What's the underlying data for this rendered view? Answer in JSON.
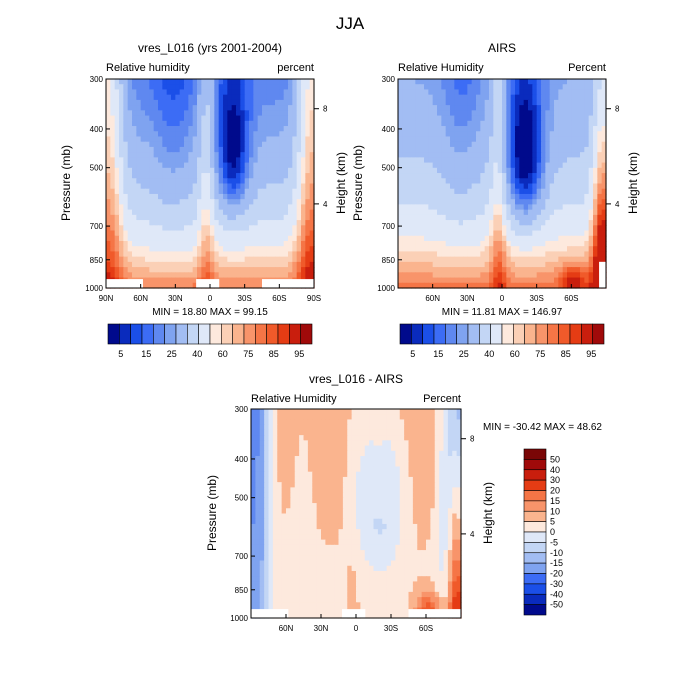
{
  "figure_title": "JJA",
  "colors": {
    "palette": [
      "#000a8c",
      "#0a2bbd",
      "#1b4fe8",
      "#3c6cf5",
      "#5f88f0",
      "#7fa3f0",
      "#a2bdf3",
      "#c3d6f5",
      "#dfe8f8",
      "#fde9dd",
      "#fbd0b6",
      "#fab48e",
      "#f8946a",
      "#f57546",
      "#f05a2a",
      "#e53c14",
      "#c91e0d",
      "#a00a0a",
      "#7a0606"
    ]
  },
  "chart_data": [
    {
      "id": "model",
      "type": "heatmap",
      "title": "vres_L016 (yrs 2001-2004)",
      "left_label": "Relative humidity",
      "right_label": "percent",
      "ylabel": "Pressure (mb)",
      "y2label": "Height (km)",
      "pressure_ticks": [
        "300",
        "400",
        "500",
        "700",
        "850",
        "1000"
      ],
      "height_ticks": [
        "8",
        "4"
      ],
      "height_tick_values_mb": [
        356,
        616
      ],
      "lat_ticks": [
        "90N",
        "60N",
        "30N",
        "0",
        "30S",
        "60S",
        "90S"
      ],
      "lat_tick_values": [
        90,
        60,
        30,
        0,
        -30,
        -60,
        -90
      ],
      "x_range": [
        90,
        -90
      ],
      "ylim_mb": [
        300,
        1000
      ],
      "stats": "MIN =  18.80  MAX =  99.15",
      "colorbar_labels": [
        "5",
        "15",
        "25",
        "40",
        "60",
        "75",
        "85",
        "95"
      ],
      "colorbar_levels": [
        0,
        5,
        10,
        15,
        20,
        25,
        30,
        40,
        50,
        60,
        65,
        70,
        75,
        80,
        85,
        90,
        95,
        100
      ],
      "blanks": [
        [
          90,
          58,
          950
        ],
        [
          12,
          -8,
          950
        ],
        [
          -45,
          -90,
          950
        ]
      ]
    },
    {
      "id": "obs",
      "type": "heatmap",
      "title": "AIRS",
      "left_label": "Relative Humidity",
      "right_label": "Percent",
      "ylabel": "Pressure (mb)",
      "y2label": "Height (km)",
      "pressure_ticks": [
        "300",
        "400",
        "500",
        "700",
        "850",
        "1000"
      ],
      "height_ticks": [
        "8",
        "4"
      ],
      "height_tick_values_mb": [
        356,
        616
      ],
      "lat_ticks": [
        "60N",
        "30N",
        "0",
        "30S",
        "60S"
      ],
      "lat_tick_values": [
        60,
        30,
        0,
        -30,
        -60
      ],
      "x_range": [
        90,
        -90
      ],
      "ylim_mb": [
        300,
        1000
      ],
      "stats": "MIN =  11.81  MAX =  146.97",
      "colorbar_labels": [
        "5",
        "15",
        "25",
        "40",
        "60",
        "75",
        "85",
        "95"
      ],
      "colorbar_levels": [
        0,
        5,
        10,
        15,
        20,
        25,
        30,
        40,
        50,
        60,
        65,
        70,
        75,
        80,
        85,
        90,
        95,
        100
      ],
      "blanks": [
        [
          -84,
          -90,
          860
        ]
      ]
    },
    {
      "id": "diff",
      "type": "heatmap",
      "title": "vres_L016 - AIRS",
      "left_label": "Relative Humidity",
      "right_label": "Percent",
      "ylabel": "Pressure (mb)",
      "y2label": "Height (km)",
      "pressure_ticks": [
        "300",
        "400",
        "500",
        "700",
        "850",
        "1000"
      ],
      "height_ticks": [
        "8",
        "4"
      ],
      "height_tick_values_mb": [
        356,
        616
      ],
      "lat_ticks": [
        "60N",
        "30N",
        "0",
        "30S",
        "60S"
      ],
      "lat_tick_values": [
        60,
        30,
        0,
        -30,
        -60
      ],
      "x_range": [
        90,
        -90
      ],
      "ylim_mb": [
        300,
        1000
      ],
      "stats": "MIN = -30.42  MAX =  48.62",
      "colorbar_labels": [
        "50",
        "40",
        "30",
        "20",
        "15",
        "10",
        "5",
        "0",
        "-5",
        "-10",
        "-15",
        "-20",
        "-30",
        "-40",
        "-50"
      ],
      "colorbar_levels": [
        -60,
        -50,
        -40,
        -30,
        -20,
        -15,
        -10,
        -5,
        0,
        5,
        10,
        15,
        20,
        30,
        40,
        50,
        60
      ],
      "blanks": [
        [
          90,
          58,
          950
        ],
        [
          12,
          -8,
          950
        ],
        [
          -45,
          -90,
          950
        ]
      ]
    }
  ]
}
